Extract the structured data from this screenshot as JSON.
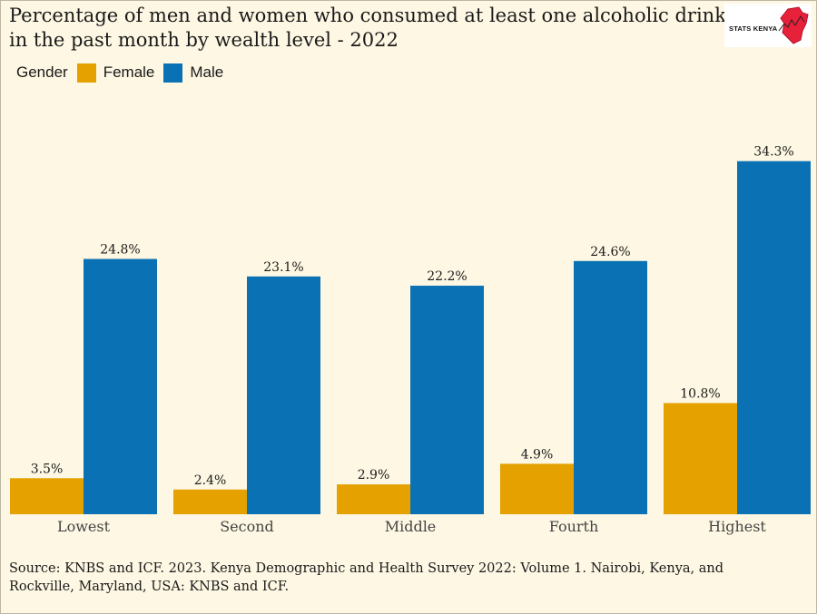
{
  "title": "Percentage of men and women who consumed at least one alcoholic drink in the past month by wealth level - 2022",
  "logo": {
    "text": "STATS KENYA"
  },
  "legend": {
    "label": "Gender",
    "female": "Female",
    "male": "Male"
  },
  "colors": {
    "female": "#e4a100",
    "male": "#0a72b4",
    "background": "#fdf7e3"
  },
  "source": "Source: KNBS and ICF. 2023. Kenya Demographic and Health Survey 2022: Volume 1. Nairobi, Kenya, and Rockville, Maryland, USA: KNBS and ICF.",
  "chart_data": {
    "type": "bar",
    "title": "Percentage of men and women who consumed at least one alcoholic drink in the past month by wealth level - 2022",
    "categories": [
      "Lowest",
      "Second",
      "Middle",
      "Fourth",
      "Highest"
    ],
    "series": [
      {
        "name": "Female",
        "values": [
          3.5,
          2.4,
          2.9,
          4.9,
          10.8
        ],
        "labels": [
          "3.5%",
          "2.4%",
          "2.9%",
          "4.9%",
          "10.8%"
        ]
      },
      {
        "name": "Male",
        "values": [
          24.8,
          23.1,
          22.2,
          24.6,
          34.3
        ],
        "labels": [
          "24.8%",
          "23.1%",
          "22.2%",
          "24.6%",
          "34.3%"
        ]
      }
    ],
    "xlabel": "",
    "ylabel": "",
    "ylim": [
      0,
      36
    ],
    "grid": false,
    "legend_position": "top-left"
  }
}
